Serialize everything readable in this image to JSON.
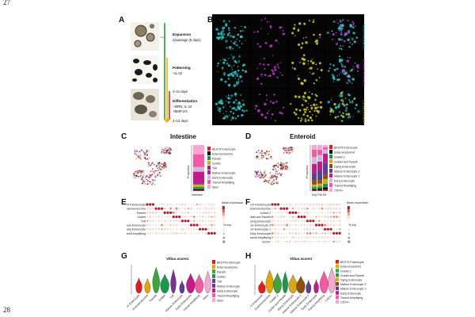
{
  "page": {
    "line_top": "27",
    "line_bottom": "28"
  },
  "panels": {
    "A": {
      "label": "A",
      "stages": [
        {
          "title": "Expansion",
          "sub": "4/passage (5 days)"
        },
        {
          "title": "Patterning",
          "sub": "+IL-22"
        },
        {
          "title": "Differentiation",
          "sub": "−WRN, IL-22\n+BMP-2/4"
        }
      ],
      "timepoints": [
        "4~11 days",
        "4~14 days"
      ]
    },
    "B": {
      "label": "B",
      "row_labels": [
        "DAPI/KRT20/EDU",
        "DAPI/MUC2/KRT20",
        "DAPI/LYZ/MUC2"
      ]
    },
    "C": {
      "label": "C",
      "title": "Intestine",
      "ylabel": "Proportion",
      "xlabel": "Intestine",
      "legend": [
        "BEST4 Enterocyte",
        "Enteroendocrine",
        "Paneth",
        "Goblet",
        "Tuft",
        "Mature Enterocyte",
        "Early Enterocyte",
        "Transit Amplifying",
        "Stem"
      ],
      "colors": [
        "#e41a1c",
        "#000000",
        "#1a9850",
        "#d9a61c",
        "#7b3294",
        "#c51b8a",
        "#d7b5d8",
        "#f25aa6",
        "#f7a8cf"
      ]
    },
    "D": {
      "label": "D",
      "title": "Enteroid",
      "ylabel": "Proportion",
      "xlabel": "Exp Pat Dif",
      "legend": [
        "BEST4 Enterocyte",
        "Enteroendocrine",
        "Goblet 2",
        "Goblet and Paneth",
        "Dying Enterocyte",
        "Mature Enterocyte 2",
        "Mature Enterocyte 1",
        "Early Enterocyte",
        "Transit Amplifying",
        "CD24+"
      ],
      "colors": [
        "#e41a1c",
        "#000000",
        "#1a9850",
        "#d9a61c",
        "#8c510a",
        "#5e3c99",
        "#c51b8a",
        "#d7b5d8",
        "#f25aa6",
        "#f7a8cf"
      ]
    },
    "E": {
      "label": "E",
      "rows": [
        "BEST4 Enterocyte",
        "Enteroendocrine",
        "Paneth",
        "Goblet",
        "Tuft",
        "Mature Enterocyte",
        "Early Enterocyte",
        "Transit Amplifying"
      ],
      "legend_title": "Mean expression",
      "pct_title": "% exp"
    },
    "F": {
      "label": "F",
      "rows": [
        "BEST4 Enterocyte",
        "Enteroendocrine",
        "Goblet 2",
        "Goblet and Paneth",
        "Dying Enterocyte",
        "Mature Enterocyte 2",
        "Mature Enterocyte 1",
        "Early Enterocyte",
        "Transit Amplifying",
        "CD24+"
      ],
      "legend_title": "Mean expression",
      "pct_title": "% exp"
    },
    "G": {
      "label": "G",
      "title": "Villus.score1",
      "legend": [
        "BEST4 Enterocyte",
        "Enteroendocrine",
        "Paneth",
        "Goblet",
        "Tuft",
        "Mature Enterocyte",
        "Early Enterocyte",
        "Transit Amplifying",
        "Stem"
      ],
      "colors": [
        "#e41a1c",
        "#e6a400",
        "#3ea53e",
        "#1a9850",
        "#7b3294",
        "#5e3c99",
        "#c51b8a",
        "#f25aa6",
        "#f7a8cf"
      ]
    },
    "H": {
      "label": "H",
      "title": "Villus.score1",
      "legend": [
        "BEST4 Enterocyte",
        "Enteroendocrine",
        "Goblet 2",
        "Goblet and Paneth",
        "Dying Enterocyte",
        "Mature Enterocyte 2",
        "Mature Enterocyte 1",
        "Early Enterocyte",
        "Transit Amplifying",
        "CD24+"
      ],
      "colors": [
        "#e41a1c",
        "#e6a400",
        "#3ea53e",
        "#1a9850",
        "#d9a61c",
        "#8c510a",
        "#5e3c99",
        "#c51b8a",
        "#f25aa6",
        "#f7a8cf"
      ]
    }
  }
}
